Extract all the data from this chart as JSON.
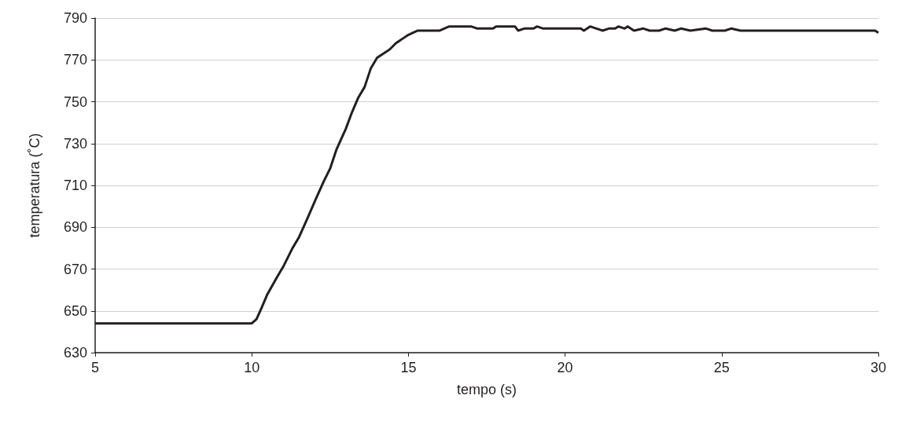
{
  "chart_data": {
    "type": "line",
    "xlabel": "tempo (s)",
    "ylabel": "temperatura (˚C)",
    "xlim": [
      5,
      30
    ],
    "xticks": [
      5,
      10,
      15,
      20,
      25,
      30
    ],
    "ylim": [
      630,
      790
    ],
    "yticks": [
      630,
      650,
      670,
      690,
      710,
      730,
      750,
      770,
      790
    ],
    "grid": "y",
    "marker": "none",
    "line_style": "solid",
    "series": [
      {
        "color": "#231f20",
        "x": [
          5,
          10,
          10.15,
          10.3,
          10.5,
          10.8,
          11,
          11.3,
          11.5,
          11.8,
          12,
          12.3,
          12.5,
          12.7,
          13,
          13.2,
          13.4,
          13.6,
          13.8,
          14,
          14.2,
          14.4,
          14.6,
          14.8,
          15,
          15.3,
          16,
          16.3,
          17,
          17.2,
          17.7,
          17.8,
          18.4,
          18.5,
          18.7,
          19,
          19.1,
          19.3,
          20,
          20.5,
          20.6,
          20.8,
          21,
          21.2,
          21.4,
          21.6,
          21.7,
          21.9,
          22,
          22.2,
          22.5,
          22.7,
          23,
          23.2,
          23.5,
          23.7,
          24,
          24.5,
          24.7,
          25.1,
          25.3,
          25.6,
          26,
          29.9,
          30
        ],
        "values": [
          644,
          644,
          646,
          651,
          658,
          666,
          671,
          680,
          685,
          695,
          702,
          712,
          718,
          727,
          737,
          745,
          752,
          757,
          766,
          771,
          773,
          775,
          778,
          780,
          782,
          784,
          784,
          786,
          786,
          785,
          785,
          786,
          786,
          784,
          785,
          785,
          786,
          785,
          785,
          785,
          784,
          786,
          785,
          784,
          785,
          785,
          786,
          785,
          786,
          784,
          785,
          784,
          784,
          785,
          784,
          785,
          784,
          785,
          784,
          784,
          785,
          784,
          784,
          784,
          783
        ]
      }
    ]
  }
}
